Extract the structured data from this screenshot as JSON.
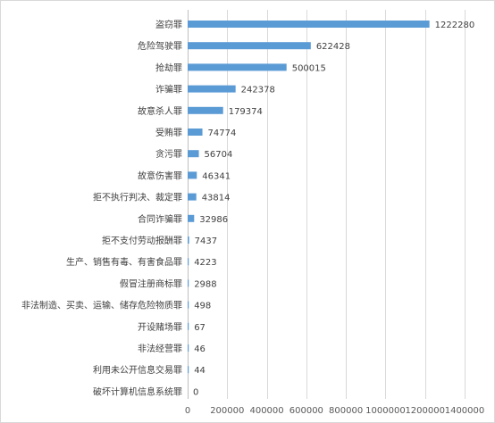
{
  "chart_data": {
    "type": "bar",
    "orientation": "horizontal",
    "title": "",
    "xlabel": "",
    "ylabel": "",
    "categories": [
      "盗窃罪",
      "危险驾驶罪",
      "抢劫罪",
      "诈骗罪",
      "故意杀人罪",
      "受贿罪",
      "贪污罪",
      "故意伤害罪",
      "拒不执行判决、裁定罪",
      "合同诈骗罪",
      "拒不支付劳动报酬罪",
      "生产、销售有毒、有害食品罪",
      "假冒注册商标罪",
      "非法制造、买卖、运输、储存危险物质罪",
      "开设赌场罪",
      "非法经营罪",
      "利用未公开信息交易罪",
      "破坏计算机信息系统罪"
    ],
    "values": [
      1222280,
      622428,
      500015,
      242378,
      179374,
      74774,
      56704,
      46341,
      43814,
      32986,
      7437,
      4223,
      2988,
      498,
      67,
      46,
      44,
      0
    ],
    "value_labels": [
      "1222280",
      "622428",
      "500015",
      "242378",
      "179374",
      "74774",
      "56704",
      "46341",
      "43814",
      "32986",
      "7437",
      "4223",
      "2988",
      "498",
      "67",
      "46",
      "44",
      "0"
    ],
    "xlim": [
      0,
      1400000
    ],
    "x_ticks": [
      0,
      200000,
      400000,
      600000,
      800000,
      1000000,
      1200000,
      1400000
    ],
    "x_tick_labels": [
      "0",
      "200000",
      "400000",
      "600000",
      "800000",
      "1000000",
      "1200000",
      "1400000"
    ],
    "grid": true,
    "legend": false,
    "bar_color": "#5b9bd5"
  }
}
